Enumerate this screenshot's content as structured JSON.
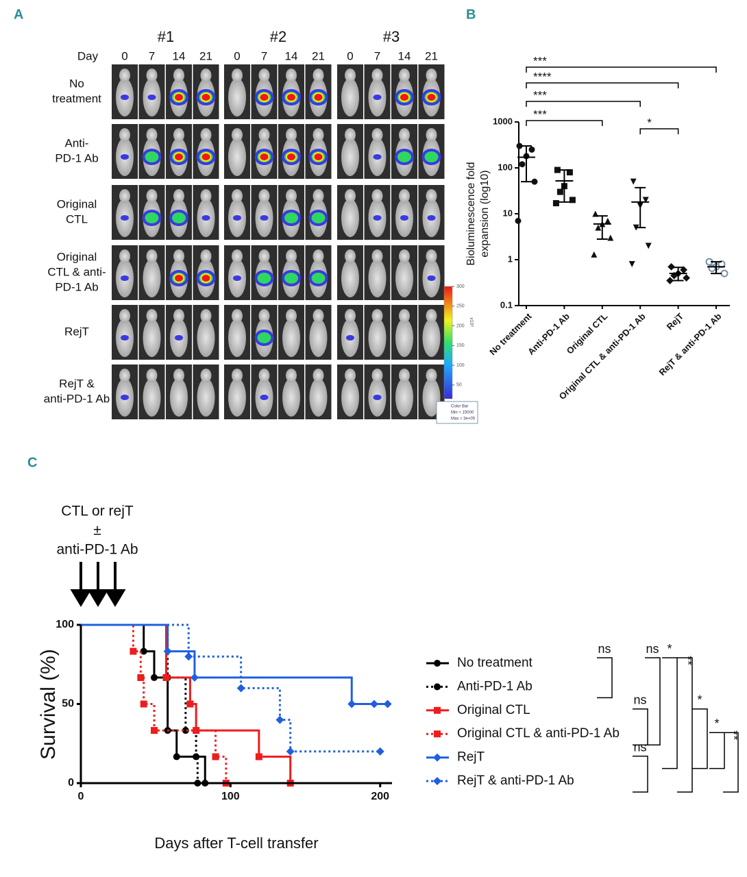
{
  "panel_labels": [
    "A",
    "B",
    "C"
  ],
  "panel_a": {
    "groups": [
      "#1",
      "#2",
      "#3"
    ],
    "day_label": "Day",
    "days": [
      "0",
      "7",
      "14",
      "21"
    ],
    "rows": [
      [
        "No",
        "treatment"
      ],
      [
        "Anti-",
        "PD-1 Ab"
      ],
      [
        "Original",
        "CTL"
      ],
      [
        "Original",
        "CTL & anti-",
        "PD-1 Ab"
      ],
      [
        "RejT"
      ],
      [
        "RejT &",
        "anti-PD-1 Ab"
      ]
    ],
    "colorbar": {
      "lim": [
        15,
        300
      ],
      "ticks": [
        50,
        100,
        150,
        200,
        250,
        300
      ],
      "unit": "x10³",
      "title": "Color Bar",
      "min_label": "Min = 15000",
      "max_label": "Max = 3e+05"
    }
  },
  "chart_data": [
    {
      "type": "scatter",
      "ylabel": [
        "Bioluminescence fold",
        "expansion (log10)"
      ],
      "categories": [
        "No treatment",
        "Anti-PD-1 Ab",
        "Original CTL",
        "Original CTL & anti-PD-1 Ab",
        "RejT",
        "RejT & anti-PD-1 Ab"
      ],
      "log_y": true,
      "ylim": [
        0.1,
        1000
      ],
      "yticks": [
        0.1,
        1,
        10,
        100,
        1000
      ],
      "markers": [
        "circle",
        "square",
        "triangle",
        "triangle-down",
        "diamond",
        "circle-open"
      ],
      "color": "#111111",
      "open_color": "#7a8fa8",
      "values": [
        [
          300,
          250,
          180,
          120,
          50,
          7
        ],
        [
          90,
          80,
          40,
          30,
          20,
          17
        ],
        [
          10,
          7,
          6,
          5,
          3,
          1.3
        ],
        [
          50,
          20,
          15,
          5,
          2,
          0.8
        ],
        [
          0.7,
          0.6,
          0.5,
          0.45,
          0.4,
          0.35
        ],
        [
          0.9,
          0.8,
          0.7,
          0.65,
          0.5
        ]
      ],
      "means": [
        170,
        52,
        6,
        18,
        0.5,
        0.7
      ],
      "lower": [
        50,
        18,
        2.8,
        5,
        0.35,
        0.5
      ],
      "upper": [
        300,
        90,
        9,
        37,
        0.68,
        0.9
      ],
      "brackets": [
        {
          "label": "***",
          "from": 0,
          "to": 5
        },
        {
          "label": "****",
          "from": 0,
          "to": 4
        },
        {
          "label": "***",
          "from": 0,
          "to": 3
        },
        {
          "label": "***",
          "from": 0,
          "to": 2
        },
        {
          "label": "*",
          "from": 3,
          "to": 4
        }
      ]
    },
    {
      "type": "line",
      "step": true,
      "xlabel": "Days after T-cell transfer",
      "ylabel": "Survival (%)",
      "xlim": [
        0,
        207
      ],
      "xticks": [
        0,
        100,
        200
      ],
      "ylim": [
        0,
        100
      ],
      "yticks": [
        0,
        50,
        100
      ],
      "annotation": [
        "CTL or rejT",
        "±",
        "anti-PD-1 Ab"
      ],
      "series": [
        {
          "name": "No treatment",
          "color": "#000000",
          "dash": false,
          "marker": "circle",
          "x": [
            0,
            42,
            49,
            58,
            64,
            83
          ],
          "values": [
            100,
            83.3,
            66.7,
            33.3,
            16.7,
            0
          ]
        },
        {
          "name": "Anti-PD-1 Ab",
          "color": "#000000",
          "dash": true,
          "marker": "circle",
          "x": [
            0,
            58,
            70,
            77,
            78
          ],
          "values": [
            100,
            66.7,
            33.3,
            16.7,
            0
          ]
        },
        {
          "name": "Original CTL",
          "color": "#ee1c1c",
          "dash": false,
          "marker": "square",
          "x": [
            0,
            57,
            73,
            77,
            119,
            140
          ],
          "values": [
            100,
            66.7,
            50,
            33.3,
            16.7,
            0
          ]
        },
        {
          "name": "Original CTL & anti-PD-1 Ab",
          "color": "#ee1c1c",
          "dash": true,
          "marker": "square",
          "x": [
            0,
            35,
            40,
            42,
            49,
            90,
            97
          ],
          "values": [
            100,
            83.3,
            66.7,
            50,
            33.3,
            16.7,
            0
          ]
        },
        {
          "name": "RejT",
          "color": "#1f5fe0",
          "dash": false,
          "marker": "diamond",
          "x": [
            0,
            58,
            76,
            181,
            196,
            205
          ],
          "values": [
            100,
            83.3,
            66.7,
            50,
            50,
            50
          ]
        },
        {
          "name": "RejT & anti-PD-1 Ab",
          "color": "#1f5fe0",
          "dash": true,
          "marker": "diamond",
          "x": [
            0,
            72,
            107,
            133,
            140,
            200
          ],
          "values": [
            100,
            80,
            60,
            40,
            20,
            20
          ]
        }
      ],
      "brackets": [
        {
          "label": "ns",
          "from": 0,
          "to": 1
        },
        {
          "label": "ns",
          "from": 2,
          "to": 3
        },
        {
          "label": "ns",
          "from": 4,
          "to": 5
        },
        {
          "label": "ns",
          "from": 0,
          "to": 3
        },
        {
          "label": "*",
          "from": 0,
          "to": 4
        },
        {
          "label": "**",
          "from": 0,
          "to": 5
        },
        {
          "label": "*",
          "from": 2,
          "to": 4
        },
        {
          "label": "*",
          "from": 3,
          "to": 4
        },
        {
          "label": "**",
          "from": 3,
          "to": 5
        }
      ]
    }
  ]
}
